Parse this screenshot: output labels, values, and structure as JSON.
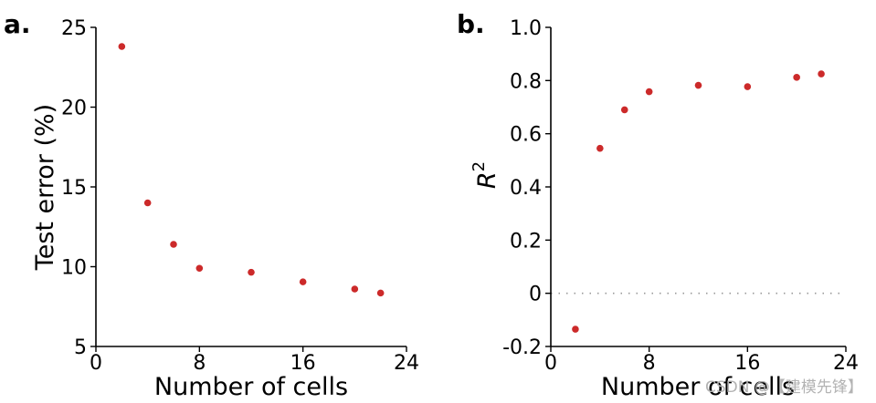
{
  "figure": {
    "watermark": "CSDN @【建模先锋】"
  },
  "chart_data": [
    {
      "type": "scatter",
      "panel_label": "a.",
      "title": "",
      "xlabel": "Number of cells",
      "ylabel": "Test error (%)",
      "xlim": [
        0,
        24
      ],
      "ylim": [
        5,
        25
      ],
      "xticks": [
        0,
        8,
        16,
        24
      ],
      "yticks": [
        5,
        10,
        15,
        20,
        25
      ],
      "xtick_labels": [
        "0",
        "8",
        "16",
        "24"
      ],
      "ytick_labels": [
        "5",
        "10",
        "15",
        "20",
        "25"
      ],
      "grid": false,
      "series": [
        {
          "name": "test error",
          "color": "#cc2a2a",
          "x": [
            2,
            4,
            6,
            8,
            12,
            16,
            20,
            22
          ],
          "y": [
            23.8,
            14.0,
            11.4,
            9.9,
            9.65,
            9.05,
            8.6,
            8.35
          ]
        }
      ]
    },
    {
      "type": "scatter",
      "panel_label": "b.",
      "title": "",
      "xlabel": "Number of cells",
      "ylabel": "R",
      "ylabel_superscript": "2",
      "xlim": [
        0,
        24
      ],
      "ylim": [
        -0.2,
        1.0
      ],
      "xticks": [
        0,
        8,
        16,
        24
      ],
      "yticks": [
        -0.2,
        0,
        0.2,
        0.4,
        0.6,
        0.8,
        1.0
      ],
      "xtick_labels": [
        "0",
        "8",
        "16",
        "24"
      ],
      "ytick_labels": [
        "-0.2",
        "0",
        "0.2",
        "0.4",
        "0.6",
        "0.8",
        "1.0"
      ],
      "grid": false,
      "reference_line_y": 0,
      "series": [
        {
          "name": "R squared",
          "color": "#cc2a2a",
          "x": [
            2,
            4,
            6,
            8,
            12,
            16,
            20,
            22
          ],
          "y": [
            -0.135,
            0.545,
            0.69,
            0.758,
            0.782,
            0.777,
            0.812,
            0.825
          ]
        }
      ]
    }
  ]
}
